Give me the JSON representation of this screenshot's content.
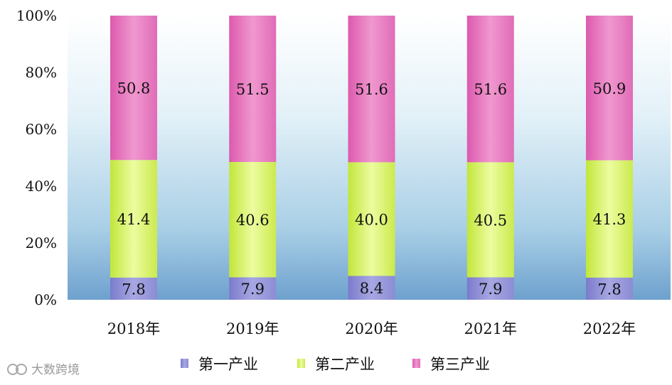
{
  "chart_data": {
    "type": "bar",
    "stacked": true,
    "percent": true,
    "categories": [
      "2018年",
      "2019年",
      "2020年",
      "2021年",
      "2022年"
    ],
    "series": [
      {
        "name": "第一产业",
        "values": [
          7.8,
          7.9,
          8.4,
          7.9,
          7.8
        ],
        "color": "#8e8ed6"
      },
      {
        "name": "第二产业",
        "values": [
          41.4,
          40.6,
          40.0,
          40.5,
          41.3
        ],
        "color": "#cdee58"
      },
      {
        "name": "第三产业",
        "values": [
          50.8,
          51.5,
          51.6,
          51.6,
          50.9
        ],
        "color": "#e26ab6"
      }
    ],
    "yticks": [
      "0%",
      "20%",
      "40%",
      "60%",
      "80%",
      "100%"
    ],
    "ylim": [
      0,
      100
    ],
    "legend_position": "bottom",
    "grid": false,
    "background": "gradient light-blue"
  },
  "watermark": "大数跨境"
}
